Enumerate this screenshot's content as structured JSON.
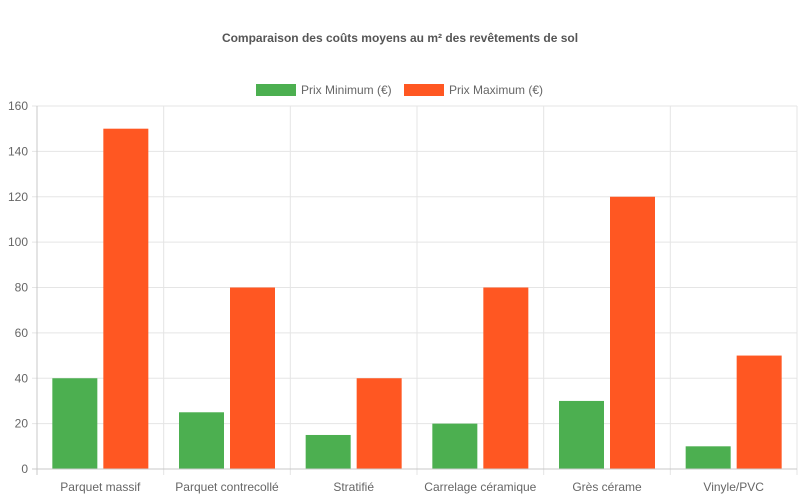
{
  "chart_data": {
    "type": "bar",
    "title": "Comparaison des coûts moyens au m² des revêtements de sol",
    "categories": [
      "Parquet massif",
      "Parquet contrecollé",
      "Stratifié",
      "Carrelage céramique",
      "Grès cérame",
      "Vinyle/PVC"
    ],
    "series": [
      {
        "name": "Prix Minimum (€)",
        "color": "#4caf50",
        "values": [
          40,
          25,
          15,
          20,
          30,
          10
        ]
      },
      {
        "name": "Prix Maximum (€)",
        "color": "#ff5722",
        "values": [
          150,
          80,
          40,
          80,
          120,
          50
        ]
      }
    ],
    "ylim": [
      0,
      160
    ],
    "yticks": [
      0,
      20,
      40,
      60,
      80,
      100,
      120,
      140,
      160
    ],
    "xlabel": "",
    "ylabel": "",
    "grid": true,
    "legend_position": "top"
  }
}
